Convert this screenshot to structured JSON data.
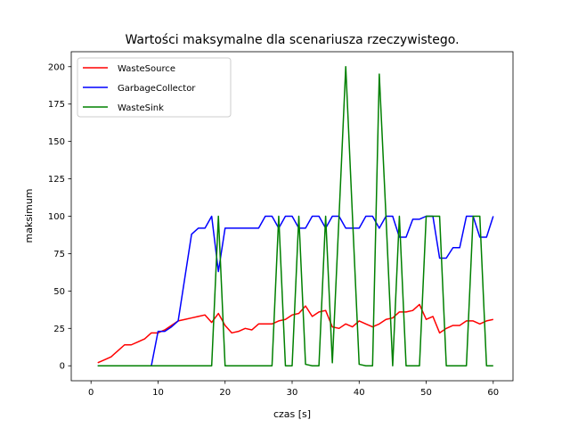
{
  "chart_data": {
    "type": "line",
    "title": "Wartości maksymalne dla scenariusza rzeczywistego.",
    "xlabel": "czas [s]",
    "ylabel": "maksimum",
    "xlim": [
      -2.95,
      62.95
    ],
    "ylim": [
      -10,
      210
    ],
    "xticks": [
      0,
      10,
      20,
      30,
      40,
      50,
      60
    ],
    "yticks": [
      0,
      25,
      50,
      75,
      100,
      125,
      150,
      175,
      200
    ],
    "grid": false,
    "legend": "top-left",
    "x": [
      1,
      2,
      3,
      4,
      5,
      6,
      7,
      8,
      9,
      10,
      11,
      12,
      13,
      14,
      15,
      16,
      17,
      18,
      19,
      20,
      21,
      22,
      23,
      24,
      25,
      26,
      27,
      28,
      29,
      30,
      31,
      32,
      33,
      34,
      35,
      36,
      37,
      38,
      39,
      40,
      41,
      42,
      43,
      44,
      45,
      46,
      47,
      48,
      49,
      50,
      51,
      52,
      53,
      54,
      55,
      56,
      57,
      58,
      59,
      60
    ],
    "series": [
      {
        "name": "WasteSource",
        "color": "#ff0000",
        "values": [
          2,
          4,
          6,
          10,
          14,
          14,
          16,
          18,
          22,
          22,
          24,
          27,
          30,
          31,
          32,
          33,
          34,
          29,
          35,
          27,
          22,
          23,
          25,
          24,
          28,
          28,
          28,
          30,
          31,
          34,
          35,
          40,
          33,
          36,
          37,
          26,
          25,
          28,
          26,
          30,
          28,
          26,
          28,
          31,
          32,
          36,
          36,
          37,
          41,
          31,
          33,
          22,
          25,
          27,
          27,
          30,
          30,
          28,
          30,
          31
        ]
      },
      {
        "name": "GarbageCollector",
        "color": "#0000ff",
        "values": [
          0,
          0,
          0,
          0,
          0,
          0,
          0,
          0,
          0,
          23,
          23,
          26,
          30,
          59,
          88,
          92,
          92,
          100,
          63,
          92,
          92,
          92,
          92,
          92,
          92,
          100,
          100,
          92,
          100,
          100,
          92,
          92,
          100,
          100,
          92,
          100,
          100,
          92,
          92,
          92,
          100,
          100,
          92,
          100,
          100,
          86,
          86,
          98,
          98,
          100,
          100,
          72,
          72,
          79,
          79,
          100,
          100,
          86,
          86,
          100
        ]
      },
      {
        "name": "WasteSink",
        "color": "#008000",
        "values": [
          0,
          0,
          0,
          0,
          0,
          0,
          0,
          0,
          0,
          0,
          0,
          0,
          0,
          0,
          0,
          0,
          0,
          0,
          100,
          0,
          0,
          0,
          0,
          0,
          0,
          0,
          0,
          100,
          0,
          0,
          100,
          1,
          0,
          0,
          100,
          2,
          100,
          200,
          100,
          1,
          0,
          0,
          195,
          100,
          0,
          100,
          0,
          0,
          0,
          100,
          100,
          100,
          0,
          0,
          0,
          0,
          100,
          100,
          0,
          0
        ]
      }
    ]
  }
}
